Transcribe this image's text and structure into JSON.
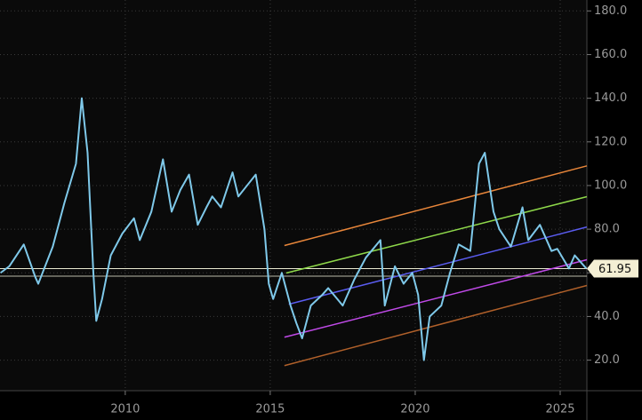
{
  "chart_data": {
    "type": "line",
    "x": [
      2005.7,
      2006.0,
      2006.5,
      2006.9,
      2007.0,
      2007.5,
      2007.9,
      2008.3,
      2008.5,
      2008.7,
      2008.9,
      2009.0,
      2009.2,
      2009.5,
      2009.9,
      2010.3,
      2010.5,
      2010.9,
      2011.3,
      2011.6,
      2011.9,
      2012.2,
      2012.5,
      2012.8,
      2013.0,
      2013.3,
      2013.7,
      2013.9,
      2014.2,
      2014.5,
      2014.8,
      2014.95,
      2015.1,
      2015.4,
      2015.7,
      2015.9,
      2016.1,
      2016.4,
      2016.8,
      2017.0,
      2017.5,
      2017.9,
      2018.3,
      2018.8,
      2018.95,
      2019.3,
      2019.6,
      2019.9,
      2020.1,
      2020.3,
      2020.5,
      2020.9,
      2021.2,
      2021.5,
      2021.9,
      2022.2,
      2022.4,
      2022.7,
      2022.9,
      2023.3,
      2023.7,
      2023.9,
      2024.3,
      2024.7,
      2024.9,
      2025.3,
      2025.5,
      2025.9
    ],
    "series": [
      {
        "color": "#7fc9ea",
        "values": [
          60,
          63,
          73,
          58,
          55,
          72,
          92,
          110,
          140,
          115,
          60,
          38,
          48,
          68,
          78,
          85,
          75,
          88,
          112,
          88,
          98,
          105,
          82,
          90,
          95,
          90,
          106,
          95,
          100,
          105,
          80,
          55,
          48,
          60,
          45,
          37,
          30,
          45,
          50,
          53,
          45,
          57,
          67,
          75,
          45,
          63,
          55,
          60,
          50,
          20,
          40,
          45,
          60,
          73,
          70,
          110,
          115,
          88,
          80,
          72,
          90,
          75,
          82,
          70,
          71,
          62,
          68,
          62
        ]
      }
    ],
    "channels": [
      {
        "color": "#e8863a",
        "x": [
          2015.49,
          2025.92
        ],
        "values": [
          72.5,
          109
        ]
      },
      {
        "color": "#8ed84a",
        "x": [
          2015.55,
          2025.92
        ],
        "values": [
          59.9,
          94.9
        ]
      },
      {
        "color": "#5a5cf0",
        "x": [
          2015.64,
          2025.92
        ],
        "values": [
          45.6,
          81
        ]
      },
      {
        "color": "#c04ae8",
        "x": [
          2015.49,
          2025.92
        ],
        "values": [
          30.5,
          66
        ]
      },
      {
        "color": "#b0602a",
        "x": [
          2015.49,
          2025.92
        ],
        "values": [
          17.5,
          54.2
        ]
      }
    ],
    "levels": [
      61.95,
      58.5
    ],
    "xlim": [
      2005.68,
      2025.92
    ],
    "xticks": [
      2010,
      2015,
      2020,
      2025
    ],
    "ylim": [
      6,
      185
    ],
    "yticks": [
      {
        "value": 20,
        "label": "20.0"
      },
      {
        "value": 40,
        "label": "40.0"
      },
      {
        "value": 60,
        "label": "60.0"
      },
      {
        "value": 80,
        "label": "80.0"
      },
      {
        "value": 100,
        "label": "100.0"
      },
      {
        "value": 120,
        "label": "120.0"
      },
      {
        "value": 140,
        "label": "140.0"
      },
      {
        "value": 160,
        "label": "160.0"
      },
      {
        "value": 180,
        "label": "180.0"
      }
    ],
    "grid": true
  }
}
